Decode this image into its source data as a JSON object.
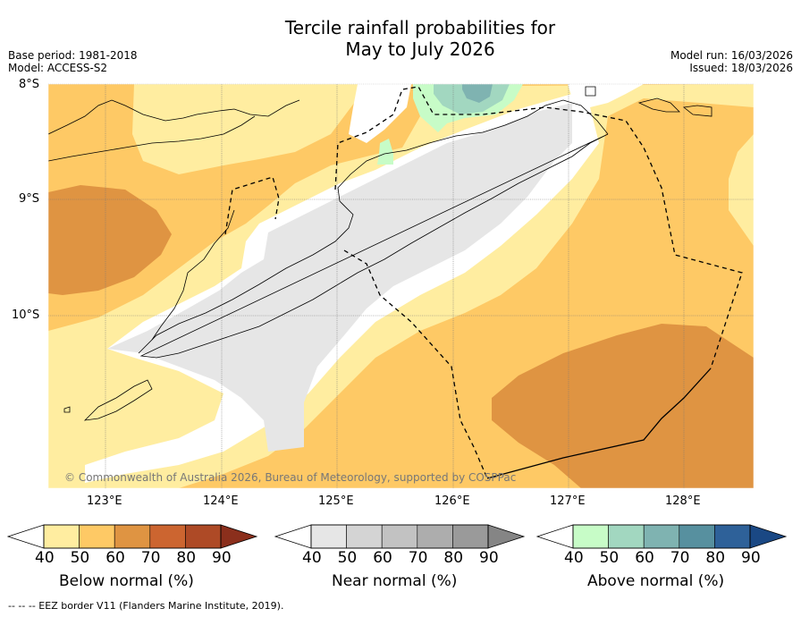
{
  "title_line1": "Tercile rainfall probabilities for",
  "title_line2": "May to July 2026",
  "base_period": "Base period: 1981-2018",
  "model": "Model: ACCESS-S2",
  "model_run": "Model run: 16/03/2026",
  "issued": "Issued: 18/03/2026",
  "lat_labels": [
    "8°S",
    "9°S",
    "10°S"
  ],
  "lon_labels": [
    "123°E",
    "124°E",
    "125°E",
    "126°E",
    "127°E",
    "128°E"
  ],
  "copyright": "© Commonwealth of Australia 2026, Bureau of Meteorology, supported by COSPPac",
  "colorbars": [
    {
      "label": "Below normal (%)",
      "ticks": [
        "40",
        "50",
        "60",
        "70",
        "80",
        "90"
      ],
      "colors": [
        "#ffeda0",
        "#fec965",
        "#df9442",
        "#cc6530",
        "#ae4a26",
        "#8b2f1c"
      ]
    },
    {
      "label": "Near normal (%)",
      "ticks": [
        "40",
        "50",
        "60",
        "70",
        "80",
        "90"
      ],
      "colors": [
        "#e6e6e6",
        "#d4d4d4",
        "#c2c2c2",
        "#adadad",
        "#9a9a9a",
        "#858585"
      ]
    },
    {
      "label": "Above normal (%)",
      "ticks": [
        "40",
        "50",
        "60",
        "70",
        "80",
        "90"
      ],
      "colors": [
        "#c7fcc7",
        "#a2d7c0",
        "#7fb3b1",
        "#57909f",
        "#2e6199",
        "#1a4884"
      ]
    }
  ],
  "footnote": "--  --  -- EEZ border V11 (Flanders Marine Institute, 2019).",
  "colors": {
    "bn50": "#ffeda0",
    "bn60": "#fec965",
    "bn70": "#df9442",
    "nn40": "#e6e6e6",
    "an50": "#c7fcc7",
    "an60": "#a2d7c0",
    "an70": "#7fb3b1"
  }
}
